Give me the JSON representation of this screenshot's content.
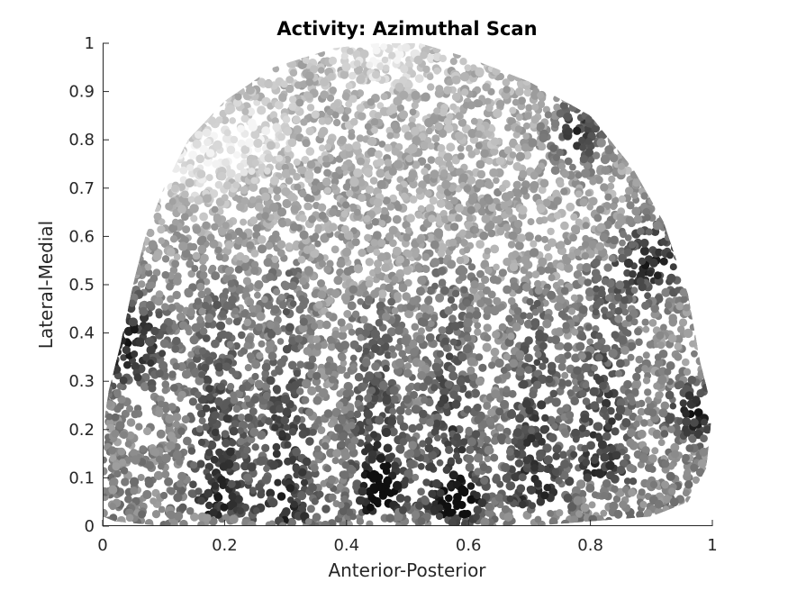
{
  "chart_data": {
    "type": "scatter",
    "title": "Activity: Azimuthal Scan",
    "xlabel": "Anterior-Posterior",
    "ylabel": "Lateral-Medial",
    "xlim": [
      0,
      1
    ],
    "ylim": [
      0,
      1
    ],
    "xticks": [
      {
        "value": 0,
        "label": "0"
      },
      {
        "value": 0.2,
        "label": "0.2"
      },
      {
        "value": 0.4,
        "label": "0.4"
      },
      {
        "value": 0.6,
        "label": "0.6"
      },
      {
        "value": 0.8,
        "label": "0.8"
      },
      {
        "value": 1,
        "label": "1"
      }
    ],
    "yticks": [
      {
        "value": 0,
        "label": "0"
      },
      {
        "value": 0.1,
        "label": "0.1"
      },
      {
        "value": 0.2,
        "label": "0.2"
      },
      {
        "value": 0.3,
        "label": "0.3"
      },
      {
        "value": 0.4,
        "label": "0.4"
      },
      {
        "value": 0.5,
        "label": "0.5"
      },
      {
        "value": 0.6,
        "label": "0.6"
      },
      {
        "value": 0.7,
        "label": "0.7"
      },
      {
        "value": 0.8,
        "label": "0.8"
      },
      {
        "value": 0.9,
        "label": "0.9"
      },
      {
        "value": 1,
        "label": "1"
      }
    ],
    "grid": false,
    "colormap": "grayscale",
    "colors": {
      "low": "#141414",
      "high": "#f2f2f2",
      "axis": "#262626",
      "background": "#ffffff"
    },
    "region_boundary": [
      [
        0.0,
        0.02
      ],
      [
        0.0,
        0.2
      ],
      [
        0.01,
        0.28
      ],
      [
        0.03,
        0.38
      ],
      [
        0.05,
        0.5
      ],
      [
        0.07,
        0.6
      ],
      [
        0.1,
        0.7
      ],
      [
        0.14,
        0.8
      ],
      [
        0.2,
        0.88
      ],
      [
        0.28,
        0.95
      ],
      [
        0.38,
        0.99
      ],
      [
        0.45,
        1.0
      ],
      [
        0.52,
        1.0
      ],
      [
        0.6,
        0.97
      ],
      [
        0.7,
        0.92
      ],
      [
        0.8,
        0.85
      ],
      [
        0.87,
        0.74
      ],
      [
        0.92,
        0.63
      ],
      [
        0.96,
        0.48
      ],
      [
        0.98,
        0.34
      ],
      [
        1.0,
        0.24
      ],
      [
        0.99,
        0.12
      ],
      [
        0.96,
        0.05
      ],
      [
        0.9,
        0.02
      ],
      [
        0.7,
        0.0
      ],
      [
        0.5,
        0.0
      ],
      [
        0.3,
        0.0
      ],
      [
        0.1,
        0.0
      ],
      [
        0.02,
        0.01
      ]
    ],
    "dark_stripes": [
      {
        "x": 0.19,
        "y_from": 0.05,
        "y_to": 0.55
      },
      {
        "x": 0.3,
        "y_from": 0.04,
        "y_to": 0.55
      },
      {
        "x": 0.45,
        "y_from": 0.06,
        "y_to": 0.48
      },
      {
        "x": 0.57,
        "y_from": 0.05,
        "y_to": 0.55
      },
      {
        "x": 0.71,
        "y_from": 0.07,
        "y_to": 0.5
      },
      {
        "x": 0.82,
        "y_from": 0.12,
        "y_to": 0.55
      }
    ],
    "dark_clusters": [
      {
        "x": 0.04,
        "y": 0.38,
        "r": 0.07
      },
      {
        "x": 0.97,
        "y": 0.24,
        "r": 0.04
      },
      {
        "x": 0.9,
        "y": 0.55,
        "r": 0.06
      },
      {
        "x": 0.78,
        "y": 0.82,
        "r": 0.05
      },
      {
        "x": 0.46,
        "y": 0.08,
        "r": 0.03
      },
      {
        "x": 0.59,
        "y": 0.05,
        "r": 0.03
      }
    ],
    "light_clusters": [
      {
        "x": 0.47,
        "y": 0.98,
        "r": 0.05
      },
      {
        "x": 0.14,
        "y": 0.75,
        "r": 0.06
      },
      {
        "x": 0.24,
        "y": 0.8,
        "r": 0.05
      }
    ]
  }
}
